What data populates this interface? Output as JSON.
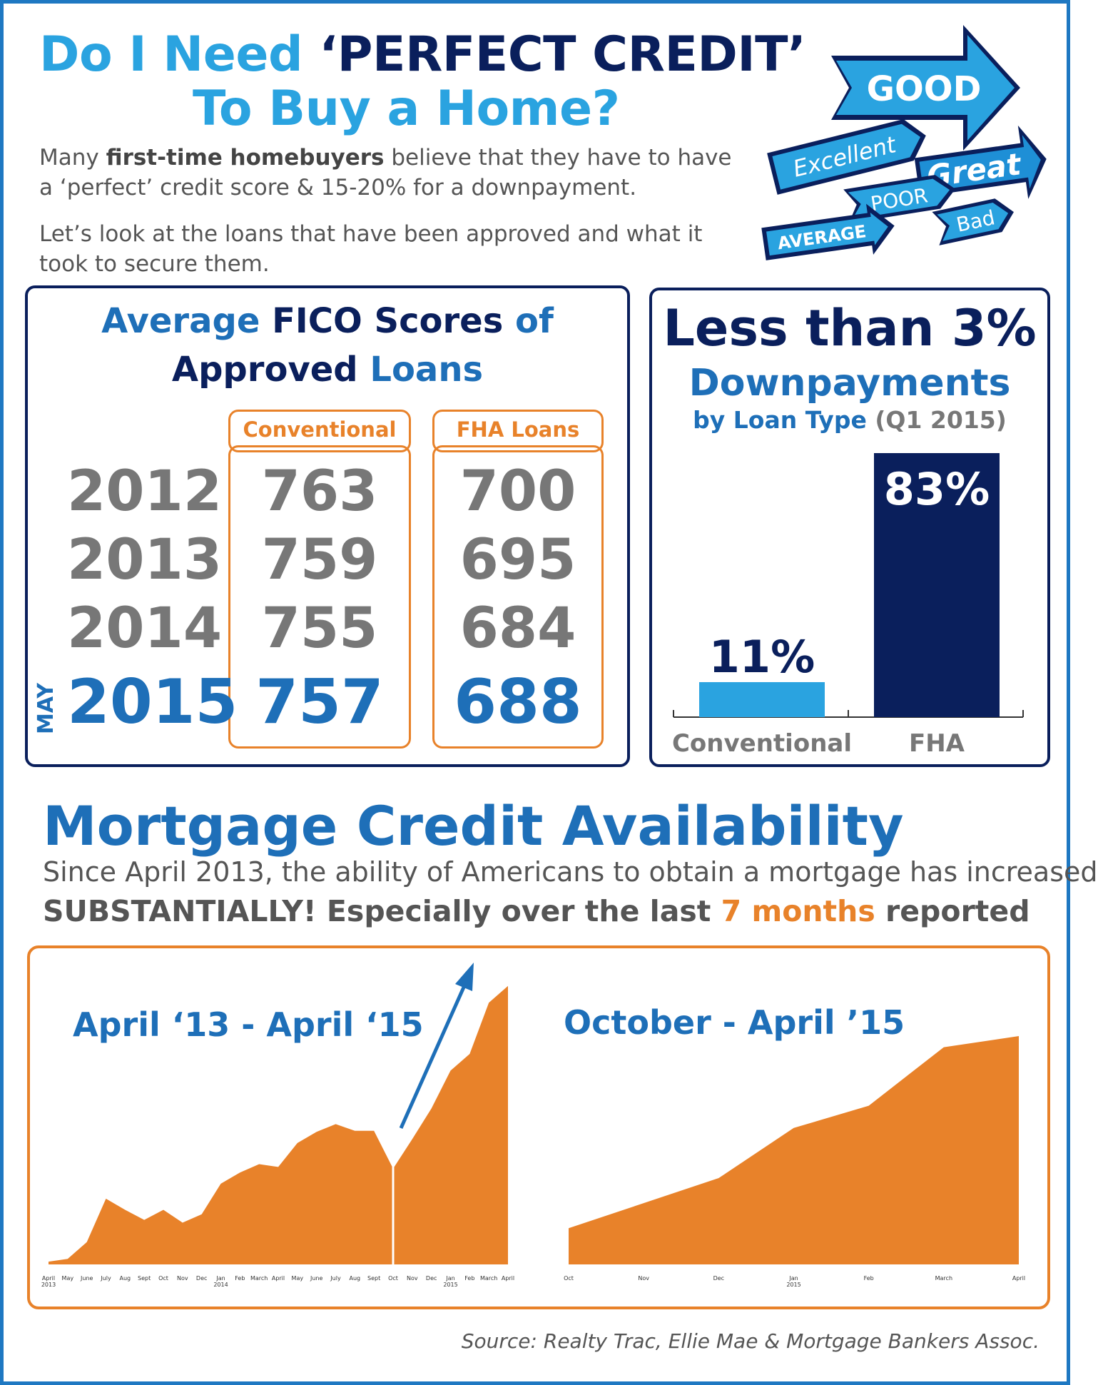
{
  "header": {
    "title_part1": "Do I Need",
    "title_part2": "‘PERFECT CREDIT’",
    "title_line2": "To Buy a Home?",
    "intro1_a": "Many ",
    "intro1_b": "first-time homebuyers",
    "intro1_c": " believe that they have to have a ‘perfect’ credit score & 15-20% for a downpayment.",
    "intro2": "Let’s look at the loans that have been approved and what it took to secure them.",
    "arrow_labels": [
      "GOOD",
      "Excellent",
      "Great",
      "POOR",
      "Bad",
      "AVERAGE"
    ]
  },
  "fico": {
    "title_w1": "Average",
    "title_w2": "FICO Scores",
    "title_w3": "of",
    "title_w4": "Approved",
    "title_w5": "Loans",
    "col1": "Conventional",
    "col2": "FHA Loans",
    "month_label": "MAY",
    "rows": [
      {
        "year": "2012",
        "conventional": "763",
        "fha": "700"
      },
      {
        "year": "2013",
        "conventional": "759",
        "fha": "695"
      },
      {
        "year": "2014",
        "conventional": "755",
        "fha": "684"
      },
      {
        "year": "2015",
        "conventional": "757",
        "fha": "688"
      }
    ]
  },
  "downpay": {
    "title1": "Less than 3%",
    "title2": "Downpayments",
    "sub_a": "by Loan Type",
    "sub_b": " (Q1 2015)"
  },
  "chart_data": [
    {
      "type": "bar",
      "title": "",
      "categories": [
        "Conventional",
        "FHA"
      ],
      "values": [
        11,
        83
      ],
      "value_labels": [
        "11%",
        "83%"
      ],
      "colors": [
        "#2aa3e0",
        "#0a1f5c"
      ]
    },
    {
      "type": "area",
      "title": "April ‘13 - April ‘15",
      "x": [
        "April 2013",
        "May",
        "June",
        "July",
        "Aug",
        "Sept",
        "Oct",
        "Nov",
        "Dec",
        "Jan 2014",
        "Feb",
        "March",
        "April",
        "May",
        "June",
        "July",
        "Aug",
        "Sept",
        "Oct",
        "Nov",
        "Dec",
        "Jan 2015",
        "Feb",
        "March",
        "April"
      ],
      "values": [
        5,
        10,
        40,
        118,
        98,
        80,
        98,
        75,
        90,
        145,
        165,
        180,
        175,
        218,
        238,
        252,
        240,
        240,
        172,
        225,
        280,
        348,
        378,
        470,
        500
      ],
      "color": "#e8822a",
      "grid": false
    },
    {
      "type": "area",
      "title": "October - April ’15",
      "x": [
        "Oct",
        "Nov",
        "Dec",
        "Jan 2015",
        "Feb",
        "March",
        "April"
      ],
      "values": [
        65,
        110,
        155,
        245,
        285,
        390,
        410
      ],
      "color": "#e8822a",
      "grid": false
    }
  ],
  "mca": {
    "title": "Mortgage Credit Availability",
    "sub1": "Since April 2013, the ability of Americans to obtain a mortgage has increased",
    "sub2_a": "SUBSTANTIALLY! Especially over the last ",
    "sub2_b": "7 months",
    "sub2_c": " reported"
  },
  "source": "Source: Realty Trac, Ellie Mae & Mortgage Bankers Assoc."
}
